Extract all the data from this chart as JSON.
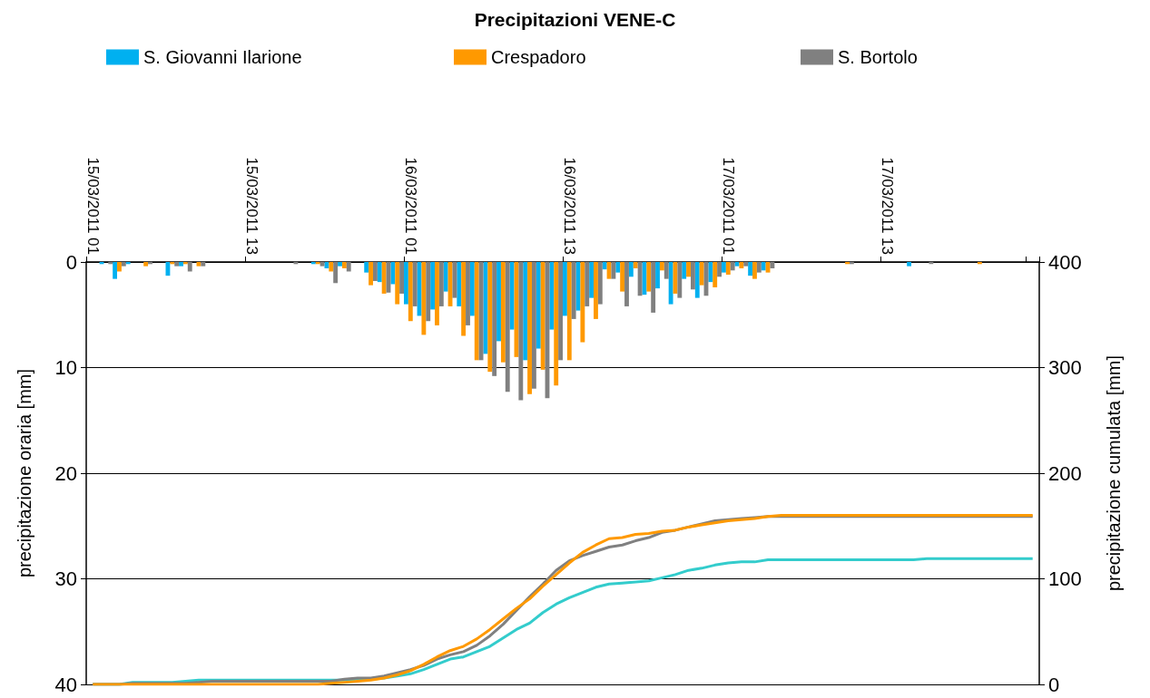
{
  "chart_data": {
    "type": "bar",
    "title": "Precipitazioni VENE-C",
    "categories": [
      "15/03/2011 01",
      null,
      null,
      null,
      null,
      null,
      null,
      null,
      null,
      null,
      null,
      null,
      "15/03/2011 13",
      null,
      null,
      null,
      null,
      null,
      null,
      null,
      null,
      null,
      null,
      null,
      "16/03/2011 01",
      null,
      null,
      null,
      null,
      null,
      null,
      null,
      null,
      null,
      null,
      null,
      "16/03/2011 13",
      null,
      null,
      null,
      null,
      null,
      null,
      null,
      null,
      null,
      null,
      null,
      "17/03/2011 01",
      null,
      null,
      null,
      null,
      null,
      null,
      null,
      null,
      null,
      null,
      null,
      "17/03/2011 13",
      null,
      null,
      null,
      null,
      null,
      null,
      null,
      null,
      null,
      null,
      null
    ],
    "ylabel": "precipitazione oraria [mm]",
    "y2label": "precipitazione cumulata [mm]",
    "ylim": [
      40,
      0
    ],
    "yticks": [
      0,
      10,
      20,
      30,
      40
    ],
    "y2lim": [
      0,
      400
    ],
    "y2ticks": [
      0,
      100,
      200,
      300,
      400
    ],
    "grid": "y",
    "legend": "top",
    "series": [
      {
        "name": "S. Giovanni Ilarione",
        "color": "#00b0f0",
        "values": [
          0,
          0.2,
          1.6,
          0.2,
          0,
          0,
          1.3,
          0.4,
          0,
          0,
          0,
          0,
          0,
          0,
          0,
          0,
          0,
          0.2,
          0.6,
          0.4,
          0,
          1.0,
          1.9,
          2.1,
          4.0,
          5.1,
          4.5,
          2.8,
          4.2,
          5.1,
          8.7,
          7.5,
          6.4,
          9.3,
          8.2,
          6.4,
          5.1,
          4.6,
          3.4,
          0.7,
          1.0,
          1.4,
          3.1,
          2.5,
          4.0,
          1.6,
          3.4,
          1.9,
          1.0,
          0.4,
          1.3,
          0.8,
          0,
          0,
          0,
          0,
          0,
          0,
          0,
          0,
          0,
          0,
          0.4,
          0,
          0,
          0,
          0,
          0,
          0,
          0,
          0,
          0
        ]
      },
      {
        "name": "Crespadoro",
        "color": "#ff9900",
        "values": [
          0,
          0,
          0.9,
          0,
          0.4,
          0,
          0.2,
          0.2,
          0.4,
          0,
          0,
          0,
          0,
          0,
          0,
          0,
          0,
          0.2,
          0.9,
          0.6,
          0,
          2.2,
          3.0,
          4.0,
          5.6,
          6.9,
          6.0,
          4.2,
          7.0,
          9.3,
          10.4,
          9.5,
          9.0,
          12.5,
          10.2,
          11.7,
          9.3,
          7.6,
          5.4,
          1.6,
          2.8,
          0.6,
          2.8,
          0.8,
          3.0,
          1.4,
          2.2,
          2.4,
          1.2,
          0.6,
          1.6,
          1.0,
          0,
          0,
          0,
          0,
          0,
          0.2,
          0,
          0,
          0,
          0,
          0,
          0,
          0,
          0,
          0,
          0.2,
          0,
          0,
          0,
          0
        ]
      },
      {
        "name": "S. Bortolo",
        "color": "#808080",
        "values": [
          0,
          0.2,
          0.4,
          0,
          0.2,
          0,
          0.4,
          0.9,
          0.4,
          0,
          0,
          0,
          0,
          0,
          0,
          0.2,
          0,
          0.4,
          2.0,
          0.9,
          0,
          1.8,
          2.9,
          3.0,
          4.2,
          5.6,
          4.2,
          3.4,
          6.0,
          9.3,
          10.8,
          12.3,
          13.1,
          12.0,
          12.9,
          9.3,
          5.4,
          4.2,
          4.0,
          1.6,
          4.2,
          3.2,
          4.8,
          1.6,
          3.4,
          2.6,
          3.2,
          1.4,
          0.8,
          0.4,
          1.0,
          0.6,
          0,
          0,
          0,
          0,
          0,
          0.2,
          0,
          0,
          0,
          0,
          0,
          0.2,
          0,
          0,
          0,
          0,
          0,
          0,
          0,
          0
        ]
      },
      {
        "type": "line",
        "axis": "y2",
        "color": "#33cccc",
        "values": [
          0,
          0,
          0,
          2,
          2,
          2,
          2,
          3,
          4,
          4,
          4,
          4,
          4,
          4,
          4,
          4,
          4,
          4,
          4,
          4,
          5,
          5,
          6,
          8,
          10,
          14,
          19,
          24,
          26,
          31,
          36,
          44,
          52,
          58,
          68,
          76,
          82,
          87,
          92,
          95,
          96,
          97,
          98,
          101,
          104,
          108,
          110,
          113,
          115,
          116,
          116,
          118,
          118,
          118,
          118,
          118,
          118,
          118,
          118,
          118,
          118,
          118,
          118,
          119,
          119,
          119,
          119,
          119,
          119,
          119,
          119,
          119
        ]
      },
      {
        "type": "line",
        "axis": "y2",
        "color": "#ff9900",
        "values": [
          0,
          0,
          0,
          0,
          0,
          0,
          0,
          0,
          0,
          0,
          0,
          0,
          0,
          0,
          0,
          0,
          0,
          0,
          1,
          2,
          3,
          4,
          6,
          9,
          13,
          19,
          26,
          32,
          36,
          43,
          52,
          62,
          72,
          81,
          93,
          104,
          115,
          125,
          132,
          138,
          139,
          142,
          143,
          145,
          146,
          149,
          151,
          153,
          155,
          156,
          157,
          159,
          160,
          160,
          160,
          160,
          160,
          160,
          160,
          160,
          160,
          160,
          160,
          160,
          160,
          160,
          160,
          160,
          160,
          160,
          160,
          160
        ]
      },
      {
        "type": "line",
        "axis": "y2",
        "color": "#808080",
        "values": [
          0,
          0,
          0,
          1,
          1,
          1,
          1,
          1,
          2,
          3,
          3,
          3,
          3,
          3,
          3,
          3,
          3,
          3,
          3,
          5,
          6,
          6,
          8,
          11,
          14,
          18,
          24,
          28,
          31,
          37,
          46,
          57,
          70,
          83,
          95,
          108,
          117,
          122,
          126,
          130,
          132,
          136,
          139,
          144,
          146,
          149,
          152,
          155,
          156,
          157,
          158,
          159,
          159,
          159,
          159,
          159,
          159,
          159,
          159,
          159,
          159,
          159,
          159,
          159,
          159,
          159,
          159,
          159,
          159,
          159,
          159,
          159
        ]
      }
    ]
  }
}
